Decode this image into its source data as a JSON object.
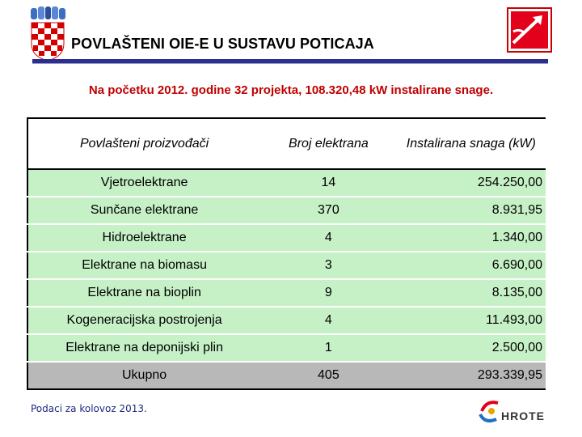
{
  "header": {
    "title": "POVLAŠTENI OIE-E U SUSTAVU POTICAJA",
    "subtitle": "Na početku 2012. godine 32 projekta, 108.320,48 kW instalirane snage."
  },
  "table": {
    "columns": [
      "Povlašteni proizvođači",
      "Broj elektrana",
      "Instalirana snaga (kW)"
    ],
    "rows": [
      {
        "name": "Vjetroelektrane",
        "count": "14",
        "power": "254.250,00"
      },
      {
        "name": "Sunčane elektrane",
        "count": "370",
        "power": "8.931,95"
      },
      {
        "name": "Hidroelektrane",
        "count": "4",
        "power": "1.340,00"
      },
      {
        "name": "Elektrane na biomasu",
        "count": "3",
        "power": "6.690,00"
      },
      {
        "name": "Elektrane na bioplin",
        "count": "9",
        "power": "8.135,00"
      },
      {
        "name": "Kogeneracijska postrojenja",
        "count": "4",
        "power": "11.493,00"
      },
      {
        "name": "Elektrane na deponijski plin",
        "count": "1",
        "power": "2.500,00"
      }
    ],
    "total": {
      "name": "Ukupno",
      "count": "405",
      "power": "293.339,95"
    }
  },
  "footer": {
    "note": "Podaci za kolovoz 2013.",
    "logo_text": "HROTE"
  },
  "colors": {
    "row_green": "#c6f0c6",
    "total_gray": "#b8b8b8",
    "subtitle_red": "#c00000",
    "rule_blue": "#2d2f8f"
  }
}
